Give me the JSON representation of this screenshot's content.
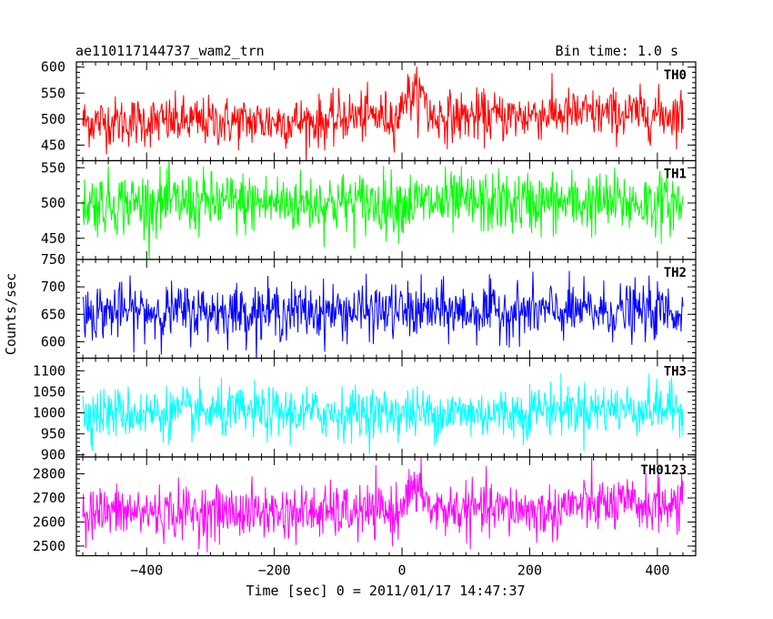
{
  "header": {
    "title": "ae110117144737_wam2_trn",
    "bin_time": "Bin time: 1.0 s"
  },
  "chart_data": {
    "type": "line",
    "title": "ae110117144737_wam2_trn",
    "subtitle": "Bin time: 1.0 s",
    "xlabel": "Time [sec] 0 = 2011/01/17 14:47:37",
    "ylabel": "Counts/sec",
    "xlim": [
      -510,
      460
    ],
    "x_range": [
      -500,
      440
    ],
    "x_step": 1.0,
    "xticks": [
      -400,
      -200,
      0,
      200,
      400
    ],
    "xtick_labels": [
      "−400",
      "−200",
      "0",
      "200",
      "400"
    ],
    "grid": false,
    "legend": "none",
    "series": [
      {
        "name": "TH0",
        "color": "#ff0000",
        "ylim": [
          420,
          610
        ],
        "yticks": [
          450,
          500,
          550,
          600
        ],
        "ytick_labels": [
          "450",
          "500",
          "550",
          "600"
        ],
        "mean": 495,
        "noise": 24,
        "features": [
          {
            "x_from": -100,
            "x_to": 0,
            "mean": 505
          },
          {
            "x_from": 0,
            "x_to": 40,
            "mean": 545
          },
          {
            "x_from": 40,
            "x_to": 200,
            "mean": 505
          },
          {
            "x_from": 200,
            "x_to": 440,
            "mean": 510
          }
        ]
      },
      {
        "name": "TH1",
        "color": "#00ff00",
        "ylim": [
          420,
          560
        ],
        "yticks": [
          450,
          500,
          550
        ],
        "ytick_labels": [
          "450",
          "500",
          "550"
        ],
        "mean": 500,
        "noise": 22,
        "features": []
      },
      {
        "name": "TH2",
        "color": "#0000ff",
        "ylim": [
          570,
          750
        ],
        "yticks": [
          600,
          650,
          700,
          750
        ],
        "ytick_labels": [
          "600",
          "650",
          "700",
          "750"
        ],
        "mean": 655,
        "noise": 25,
        "features": []
      },
      {
        "name": "TH3",
        "color": "#00ffff",
        "ylim": [
          895,
          1130
        ],
        "yticks": [
          900,
          950,
          1000,
          1050,
          1100
        ],
        "ytick_labels": [
          "900",
          "950",
          "1000",
          "1050",
          "1100"
        ],
        "mean": 1000,
        "noise": 30,
        "features": [
          {
            "x_from": 200,
            "x_to": 440,
            "mean": 1010
          }
        ]
      },
      {
        "name": "TH0123",
        "color": "#ff00ff",
        "ylim": [
          2460,
          2870
        ],
        "yticks": [
          2500,
          2600,
          2700,
          2800
        ],
        "ytick_labels": [
          "2500",
          "2600",
          "2700",
          "2800"
        ],
        "mean": 2640,
        "noise": 55,
        "features": [
          {
            "x_from": 0,
            "x_to": 40,
            "mean": 2720
          },
          {
            "x_from": 40,
            "x_to": 200,
            "mean": 2650
          },
          {
            "x_from": 250,
            "x_to": 440,
            "mean": 2670
          }
        ]
      }
    ]
  }
}
